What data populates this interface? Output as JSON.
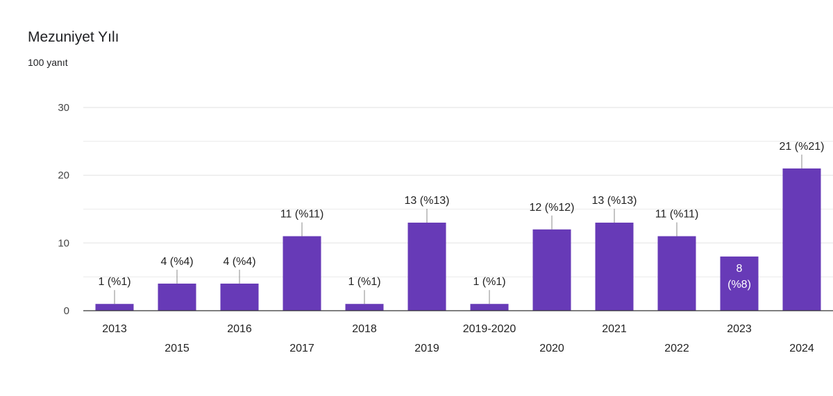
{
  "chart_data": {
    "type": "bar",
    "title": "Mezuniyet Yılı",
    "subtitle": "100 yanıt",
    "categories": [
      "2013",
      "2015",
      "2016",
      "2017",
      "2018",
      "2019",
      "2019-2020",
      "2020",
      "2021",
      "2022",
      "2023",
      "2024"
    ],
    "values": [
      1,
      4,
      4,
      11,
      1,
      13,
      1,
      12,
      13,
      11,
      8,
      21
    ],
    "data_labels": [
      "1 (%1)",
      "4 (%4)",
      "4 (%4)",
      "11 (%11)",
      "1 (%1)",
      "13 (%13)",
      "1 (%1)",
      "12 (%12)",
      "13 (%13)",
      "11 (%11)",
      "8 (%8)",
      "21 (%21)"
    ],
    "ylim": [
      0,
      30
    ],
    "yticks": [
      0,
      10,
      20,
      30
    ],
    "xlabel": "",
    "ylabel": "",
    "grid": true,
    "colors": {
      "bar": "#673ab7",
      "grid": "#e6e6e6",
      "axis": "#333333"
    }
  }
}
